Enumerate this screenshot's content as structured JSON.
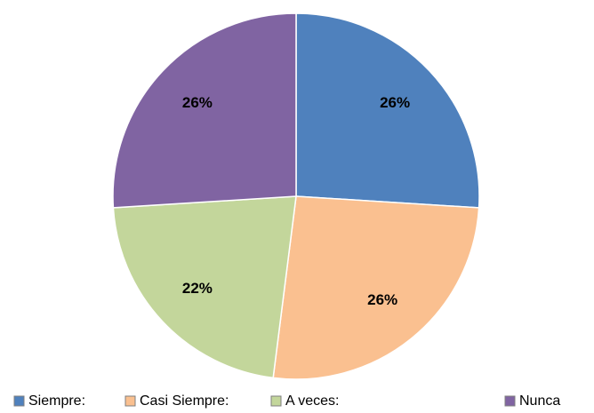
{
  "chart_data": {
    "type": "pie",
    "categories": [
      "Siempre:",
      "Casi Siempre:",
      "A veces:",
      "Nunca"
    ],
    "values": [
      26,
      26,
      22,
      26
    ],
    "value_labels": [
      "26%",
      "26%",
      "22%",
      "26%"
    ],
    "colors": [
      "#4f81bd",
      "#fac090",
      "#c3d69b",
      "#8064a2"
    ],
    "legend": "bottom"
  }
}
